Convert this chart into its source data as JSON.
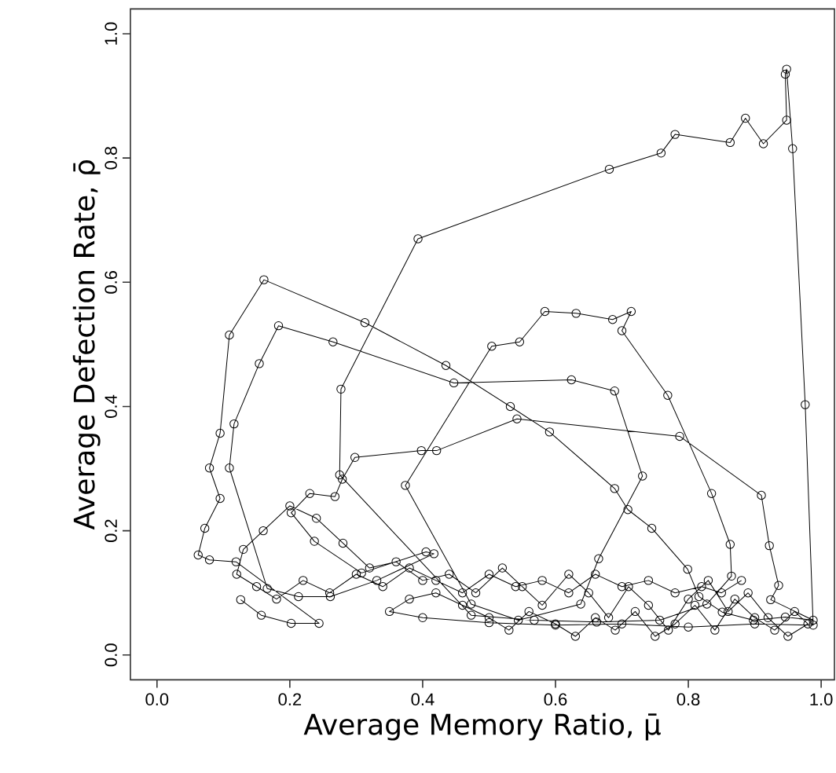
{
  "chart_data": {
    "type": "line",
    "xlabel": "Average Memory Ratio, μ̄",
    "ylabel": "Average Defection Rate, ρ̄",
    "marker": "circle",
    "line_style": "solid",
    "grid": false,
    "xlim": [
      -0.04,
      1.02
    ],
    "ylim": [
      -0.04,
      1.04
    ],
    "xticks": [
      {
        "value": 0,
        "label": "0.0"
      },
      {
        "value": 0.2,
        "label": "0.2"
      },
      {
        "value": 0.4,
        "label": "0.4"
      },
      {
        "value": 0.6,
        "label": "0.6"
      },
      {
        "value": 0.8,
        "label": "0.8"
      },
      {
        "value": 1,
        "label": "1.0"
      }
    ],
    "yticks": [
      {
        "value": 0,
        "label": "0.0"
      },
      {
        "value": 0.2,
        "label": "0.2"
      },
      {
        "value": 0.4,
        "label": "0.4"
      },
      {
        "value": 0.6,
        "label": "0.6"
      },
      {
        "value": 0.8,
        "label": "0.8"
      },
      {
        "value": 1,
        "label": "1.0"
      }
    ],
    "series": [
      {
        "color": "#000000",
        "x": [
          0.126,
          0.157,
          0.202,
          0.244,
          0.119,
          0.079,
          0.062,
          0.072,
          0.095,
          0.079,
          0.095,
          0.109,
          0.161,
          0.313,
          0.435,
          0.532,
          0.591,
          0.689,
          0.709,
          0.745,
          0.799,
          0.816,
          0.851,
          0.898,
          0.946,
          0.988,
          0.924,
          0.936,
          0.922,
          0.91,
          0.787,
          0.542,
          0.421,
          0.398,
          0.298,
          0.279,
          0.268,
          0.23,
          0.202,
          0.237,
          0.308,
          0.405,
          0.417,
          0.331,
          0.261,
          0.213,
          0.166,
          0.109,
          0.116,
          0.154,
          0.183,
          0.265,
          0.447,
          0.624,
          0.689,
          0.731,
          0.665,
          0.638,
          0.544,
          0.473,
          0.374,
          0.504,
          0.546,
          0.584,
          0.631,
          0.686,
          0.714,
          0.7,
          0.769,
          0.835,
          0.863,
          0.865,
          0.828,
          0.757,
          0.662,
          0.568,
          0.473,
          0.275,
          0.277,
          0.393,
          0.681,
          0.759,
          0.78,
          0.863,
          0.886,
          0.913,
          0.948,
          0.946,
          0.948,
          0.957,
          0.976,
          0.988,
          0.9,
          0.8,
          0.7,
          0.6,
          0.5,
          0.4,
          0.35,
          0.38,
          0.42,
          0.46,
          0.5,
          0.53,
          0.56,
          0.6,
          0.63,
          0.66,
          0.69,
          0.72,
          0.75,
          0.78,
          0.81,
          0.84,
          0.87,
          0.9,
          0.93,
          0.96,
          0.98,
          0.95,
          0.92,
          0.89,
          0.86,
          0.83,
          0.8,
          0.77,
          0.74,
          0.71,
          0.68,
          0.65,
          0.62,
          0.58,
          0.55,
          0.52,
          0.48,
          0.44,
          0.4,
          0.36,
          0.32,
          0.28,
          0.24,
          0.2,
          0.16,
          0.13,
          0.12,
          0.15,
          0.18,
          0.22,
          0.26,
          0.3,
          0.34,
          0.38,
          0.42,
          0.46,
          0.5,
          0.54,
          0.58,
          0.62,
          0.66,
          0.7,
          0.74,
          0.78,
          0.82,
          0.85,
          0.88
        ],
        "values": [
          0.089,
          0.064,
          0.051,
          0.051,
          0.15,
          0.153,
          0.161,
          0.204,
          0.252,
          0.301,
          0.357,
          0.515,
          0.604,
          0.535,
          0.466,
          0.4,
          0.359,
          0.268,
          0.234,
          0.204,
          0.138,
          0.094,
          0.069,
          0.056,
          0.061,
          0.056,
          0.089,
          0.112,
          0.176,
          0.257,
          0.352,
          0.38,
          0.329,
          0.329,
          0.318,
          0.283,
          0.255,
          0.26,
          0.229,
          0.183,
          0.132,
          0.166,
          0.163,
          0.12,
          0.094,
          0.094,
          0.107,
          0.301,
          0.372,
          0.469,
          0.53,
          0.504,
          0.438,
          0.443,
          0.425,
          0.288,
          0.155,
          0.082,
          0.056,
          0.082,
          0.273,
          0.497,
          0.504,
          0.553,
          0.55,
          0.54,
          0.553,
          0.522,
          0.418,
          0.26,
          0.178,
          0.127,
          0.082,
          0.056,
          0.053,
          0.056,
          0.064,
          0.29,
          0.428,
          0.67,
          0.782,
          0.808,
          0.838,
          0.825,
          0.864,
          0.823,
          0.861,
          0.935,
          0.943,
          0.815,
          0.403,
          0.048,
          0.05,
          0.045,
          0.05,
          0.048,
          0.052,
          0.06,
          0.07,
          0.09,
          0.1,
          0.08,
          0.06,
          0.04,
          0.07,
          0.05,
          0.03,
          0.06,
          0.04,
          0.07,
          0.03,
          0.05,
          0.08,
          0.04,
          0.09,
          0.06,
          0.04,
          0.07,
          0.05,
          0.03,
          0.06,
          0.1,
          0.07,
          0.12,
          0.09,
          0.04,
          0.08,
          0.11,
          0.06,
          0.1,
          0.13,
          0.08,
          0.11,
          0.14,
          0.1,
          0.13,
          0.12,
          0.15,
          0.14,
          0.18,
          0.22,
          0.24,
          0.2,
          0.17,
          0.13,
          0.11,
          0.09,
          0.12,
          0.1,
          0.13,
          0.11,
          0.14,
          0.12,
          0.1,
          0.13,
          0.11,
          0.12,
          0.1,
          0.13,
          0.11,
          0.12,
          0.1,
          0.11,
          0.1,
          0.12
        ]
      }
    ]
  }
}
